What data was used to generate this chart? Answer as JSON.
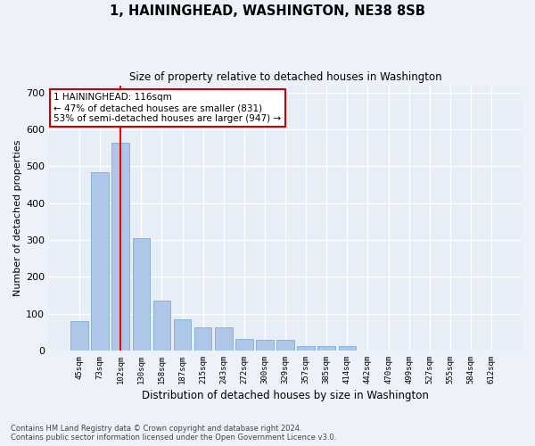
{
  "title": "1, HAININGHEAD, WASHINGTON, NE38 8SB",
  "subtitle": "Size of property relative to detached houses in Washington",
  "xlabel": "Distribution of detached houses by size in Washington",
  "ylabel": "Number of detached properties",
  "bar_color": "#aec6e8",
  "bar_edge_color": "#7aafd4",
  "bg_color": "#e8eef8",
  "grid_color": "#ffffff",
  "fig_bg_color": "#edf2fa",
  "categories": [
    "45sqm",
    "73sqm",
    "102sqm",
    "130sqm",
    "158sqm",
    "187sqm",
    "215sqm",
    "243sqm",
    "272sqm",
    "300sqm",
    "329sqm",
    "357sqm",
    "385sqm",
    "414sqm",
    "442sqm",
    "470sqm",
    "499sqm",
    "527sqm",
    "555sqm",
    "584sqm",
    "612sqm"
  ],
  "values": [
    80,
    485,
    565,
    305,
    135,
    85,
    63,
    63,
    32,
    28,
    28,
    11,
    11,
    11,
    0,
    0,
    0,
    0,
    0,
    0,
    0
  ],
  "ylim": [
    0,
    720
  ],
  "yticks": [
    0,
    100,
    200,
    300,
    400,
    500,
    600,
    700
  ],
  "property_bin_index": 2,
  "annotation_text_line1": "1 HAININGHEAD: 116sqm",
  "annotation_text_line2": "← 47% of detached houses are smaller (831)",
  "annotation_text_line3": "53% of semi-detached houses are larger (947) →",
  "annotation_box_color": "#ffffff",
  "annotation_box_edge_color": "#cc0000",
  "footer_line1": "Contains HM Land Registry data © Crown copyright and database right 2024.",
  "footer_line2": "Contains public sector information licensed under the Open Government Licence v3.0."
}
